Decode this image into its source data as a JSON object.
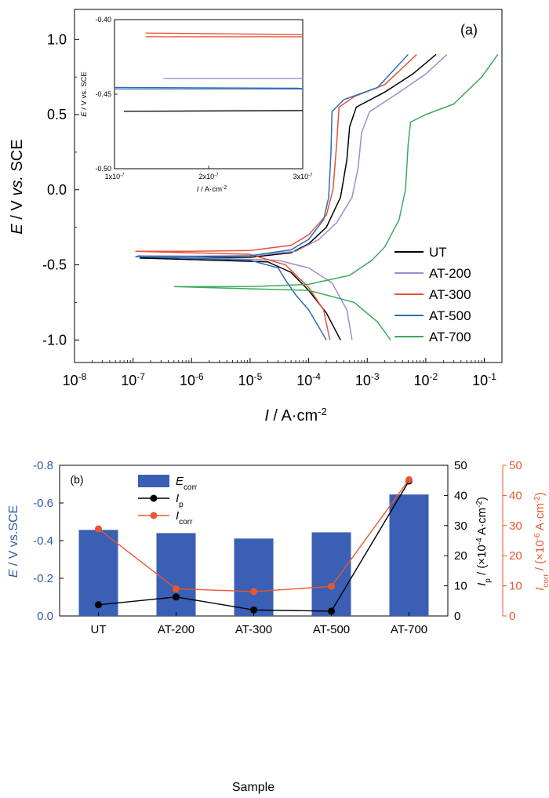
{
  "chart_data": [
    {
      "type": "line",
      "panel_label": "(a)",
      "xlabel": {
        "italic": "I",
        "text": " / A·cm",
        "sup": "-2"
      },
      "ylabel": {
        "italic1": "E",
        "mid": " / V ",
        "italic2": "vs.",
        "end": " SCE"
      },
      "x_scale": "log",
      "xlim": [
        1e-08,
        0.2
      ],
      "ylim": [
        -1.15,
        1.2
      ],
      "x_ticks": [
        {
          "value": 1e-08,
          "base": "10",
          "exp": "-8"
        },
        {
          "value": 1e-07,
          "base": "10",
          "exp": "-7"
        },
        {
          "value": 1e-06,
          "base": "10",
          "exp": "-6"
        },
        {
          "value": 1e-05,
          "base": "10",
          "exp": "-5"
        },
        {
          "value": 0.0001,
          "base": "10",
          "exp": "-4"
        },
        {
          "value": 0.001,
          "base": "10",
          "exp": "-3"
        },
        {
          "value": 0.01,
          "base": "10",
          "exp": "-2"
        },
        {
          "value": 0.1,
          "base": "10",
          "exp": "-1"
        }
      ],
      "y_ticks": [
        {
          "value": 1.0,
          "label": "1.0"
        },
        {
          "value": 0.5,
          "label": "0.5"
        },
        {
          "value": 0.0,
          "label": "0.0"
        },
        {
          "value": -0.5,
          "label": "-0.5"
        },
        {
          "value": -1.0,
          "label": "-1.0"
        }
      ],
      "legend_position": "bottom-right",
      "series": [
        {
          "name": "UT",
          "color": "#000000",
          "points": [
            [
              1.3e-07,
              -0.455
            ],
            [
              1e-06,
              -0.452
            ],
            [
              1e-05,
              -0.45
            ],
            [
              5e-05,
              -0.42
            ],
            [
              0.0001,
              -0.36
            ],
            [
              0.0002,
              -0.25
            ],
            [
              0.00035,
              -0.05
            ],
            [
              0.00045,
              0.2
            ],
            [
              0.0005,
              0.42
            ],
            [
              0.00065,
              0.55
            ],
            [
              0.002,
              0.65
            ],
            [
              0.006,
              0.77
            ],
            [
              0.015,
              0.9
            ]
          ],
          "cathodic": [
            [
              1.3e-07,
              -0.455
            ],
            [
              2e-05,
              -0.48
            ],
            [
              5e-05,
              -0.55
            ],
            [
              0.0001,
              -0.67
            ],
            [
              0.0002,
              -0.82
            ],
            [
              0.00035,
              -1.0
            ]
          ]
        },
        {
          "name": "AT-200",
          "color": "#9b8fc9",
          "points": [
            [
              1.2e-07,
              -0.44
            ],
            [
              1e-06,
              -0.442
            ],
            [
              1e-05,
              -0.44
            ],
            [
              6e-05,
              -0.41
            ],
            [
              0.00015,
              -0.33
            ],
            [
              0.0003,
              -0.22
            ],
            [
              0.00055,
              -0.05
            ],
            [
              0.0007,
              0.15
            ],
            [
              0.0008,
              0.38
            ],
            [
              0.0011,
              0.52
            ],
            [
              0.003,
              0.63
            ],
            [
              0.01,
              0.77
            ],
            [
              0.023,
              0.9
            ]
          ],
          "cathodic": [
            [
              1.2e-07,
              -0.44
            ],
            [
              3e-05,
              -0.47
            ],
            [
              0.0001,
              -0.52
            ],
            [
              0.00025,
              -0.62
            ],
            [
              0.00045,
              -0.8
            ],
            [
              0.00055,
              -1.0
            ]
          ]
        },
        {
          "name": "AT-300",
          "color": "#e8503a",
          "points": [
            [
              1.1e-07,
              -0.41
            ],
            [
              1e-06,
              -0.41
            ],
            [
              1e-05,
              -0.405
            ],
            [
              5e-05,
              -0.37
            ],
            [
              0.0001,
              -0.3
            ],
            [
              0.0002,
              -0.17
            ],
            [
              0.00026,
              0.0
            ],
            [
              0.0003,
              0.3
            ],
            [
              0.00033,
              0.55
            ],
            [
              0.0006,
              0.62
            ],
            [
              0.002,
              0.7
            ],
            [
              0.007,
              0.9
            ]
          ],
          "cathodic": [
            [
              1.1e-07,
              -0.41
            ],
            [
              1e-05,
              -0.43
            ],
            [
              4e-05,
              -0.5
            ],
            [
              0.0001,
              -0.65
            ],
            [
              0.00018,
              -0.8
            ],
            [
              0.00023,
              -1.0
            ]
          ]
        },
        {
          "name": "AT-500",
          "color": "#2e6db4",
          "points": [
            [
              1.1e-07,
              -0.445
            ],
            [
              1e-06,
              -0.445
            ],
            [
              1e-05,
              -0.44
            ],
            [
              5e-05,
              -0.4
            ],
            [
              0.0001,
              -0.33
            ],
            [
              0.00018,
              -0.2
            ],
            [
              0.00022,
              -0.05
            ],
            [
              0.00024,
              0.25
            ],
            [
              0.00025,
              0.52
            ],
            [
              0.0004,
              0.6
            ],
            [
              0.0015,
              0.68
            ],
            [
              0.005,
              0.9
            ]
          ],
          "cathodic": [
            [
              1.1e-07,
              -0.445
            ],
            [
              1e-05,
              -0.47
            ],
            [
              3e-05,
              -0.52
            ],
            [
              4e-05,
              -0.6
            ],
            [
              6e-05,
              -0.7
            ],
            [
              0.0001,
              -0.8
            ],
            [
              0.0002,
              -1.0
            ]
          ]
        },
        {
          "name": "AT-700",
          "color": "#3daa5a",
          "points": [
            [
              5e-07,
              -0.645
            ],
            [
              1e-05,
              -0.645
            ],
            [
              0.0001,
              -0.63
            ],
            [
              0.0005,
              -0.57
            ],
            [
              0.0012,
              -0.47
            ],
            [
              0.002,
              -0.38
            ],
            [
              0.0035,
              -0.2
            ],
            [
              0.0045,
              0.0
            ],
            [
              0.005,
              0.3
            ],
            [
              0.0055,
              0.45
            ],
            [
              0.01,
              0.5
            ],
            [
              0.03,
              0.57
            ],
            [
              0.09,
              0.75
            ],
            [
              0.17,
              0.9
            ]
          ],
          "cathodic": [
            [
              5e-07,
              -0.645
            ],
            [
              0.0001,
              -0.67
            ],
            [
              0.0006,
              -0.75
            ],
            [
              0.0015,
              -0.88
            ],
            [
              0.0025,
              -1.0
            ]
          ]
        }
      ],
      "inset": {
        "type": "line",
        "xlabel": {
          "italic": "I",
          "text": " / A·cm",
          "sup": "-2"
        },
        "ylabel": {
          "italic": "E",
          "text": " / V vs. SCE"
        },
        "xlim": [
          1e-07,
          3e-07
        ],
        "ylim": [
          -0.5,
          -0.4
        ],
        "x_ticks": [
          {
            "value": 1e-07,
            "mant": "1x10",
            "exp": "-7"
          },
          {
            "value": 2e-07,
            "mant": "2x10",
            "exp": "-7"
          },
          {
            "value": 3e-07,
            "mant": "3x10",
            "exp": "-7"
          }
        ],
        "y_ticks": [
          {
            "value": -0.4,
            "label": "-0.40"
          },
          {
            "value": -0.45,
            "label": "-0.45"
          },
          {
            "value": -0.5,
            "label": "-0.50"
          }
        ],
        "lines": [
          {
            "series": "AT-300",
            "color": "#e8503a",
            "x_start": 1.33e-07,
            "y": -0.409,
            "y_end": -0.41
          },
          {
            "series": "AT-300",
            "color": "#e8503a",
            "x_start": 1.33e-07,
            "y": -0.4115,
            "y_end": -0.4115
          },
          {
            "series": "AT-200",
            "color": "#9b8fc9",
            "x_start": 1.52e-07,
            "y": -0.4395,
            "y_end": -0.4395
          },
          {
            "series": "AT-500",
            "color": "#2e6db4",
            "x_start": 1e-07,
            "y": -0.4455,
            "y_end": -0.446
          },
          {
            "series": "AT-500",
            "color": "#2e6db4",
            "x_start": 1e-07,
            "y": -0.4465,
            "y_end": -0.4465
          },
          {
            "series": "UT",
            "color": "#000000",
            "x_start": 1.1e-07,
            "y": -0.4615,
            "y_end": -0.461
          }
        ]
      }
    },
    {
      "type": "bar",
      "panel_label": "(b)",
      "xlabel": "Sample",
      "categories": [
        "UT",
        "AT-200",
        "AT-300",
        "AT-500",
        "AT-700"
      ],
      "left_axis": {
        "label": {
          "italic": "E",
          "text": " / V vs.SCE"
        },
        "color": "#2f5aa8",
        "range_bottom": 0.0,
        "range_top": -0.8,
        "ticks": [
          {
            "value": -0.8,
            "label": "-0.8"
          },
          {
            "value": -0.6,
            "label": "-0.6"
          },
          {
            "value": -0.4,
            "label": "-0.4"
          },
          {
            "value": -0.2,
            "label": "-0.2"
          },
          {
            "value": 0.0,
            "label": "0.0"
          }
        ]
      },
      "right_axis_1": {
        "label": {
          "italic": "I",
          "sub": "p",
          "text": " / (×10",
          "sup": "-4",
          "text2": " A·cm",
          "sup2": "-2",
          "text3": ")"
        },
        "color": "#000000",
        "range": [
          0,
          50
        ],
        "ticks": [
          {
            "value": 0,
            "label": "0"
          },
          {
            "value": 10,
            "label": "10"
          },
          {
            "value": 20,
            "label": "20"
          },
          {
            "value": 30,
            "label": "30"
          },
          {
            "value": 40,
            "label": "40"
          },
          {
            "value": 50,
            "label": "50"
          }
        ]
      },
      "right_axis_2": {
        "label": {
          "italic": "I",
          "sub": "corr",
          "text": " / (×10",
          "sup": "-6",
          "text2": " A·cm",
          "sup2": "-2",
          "text3": ")"
        },
        "color": "#e8572f",
        "range": [
          0,
          50
        ],
        "ticks": [
          {
            "value": 0,
            "label": "0"
          },
          {
            "value": 10,
            "label": "10"
          },
          {
            "value": 20,
            "label": "20"
          },
          {
            "value": 30,
            "label": "30"
          },
          {
            "value": 40,
            "label": "40"
          },
          {
            "value": 50,
            "label": "50"
          }
        ]
      },
      "legend": {
        "position": "top-left",
        "items": [
          {
            "key": "Ecorr",
            "italic": "E",
            "sub": "corr",
            "kind": "bar"
          },
          {
            "key": "Ip",
            "italic": "I",
            "sub": "p",
            "kind": "line"
          },
          {
            "key": "Icorr",
            "italic": "I",
            "sub": "corr",
            "kind": "line"
          }
        ]
      },
      "series": [
        {
          "name": "Ecorr",
          "kind": "bar",
          "color": "#3a5fb4",
          "values": [
            -0.457,
            -0.44,
            -0.411,
            -0.444,
            -0.645
          ]
        },
        {
          "name": "Ip",
          "kind": "line",
          "axis": "right_axis_1",
          "color": "#000000",
          "values": [
            3.7,
            6.3,
            2.0,
            1.6,
            44.8
          ]
        },
        {
          "name": "Icorr",
          "kind": "line",
          "axis": "right_axis_2",
          "color": "#e8572f",
          "values": [
            28.9,
            9.0,
            8.1,
            9.8,
            45.2
          ]
        }
      ]
    }
  ]
}
